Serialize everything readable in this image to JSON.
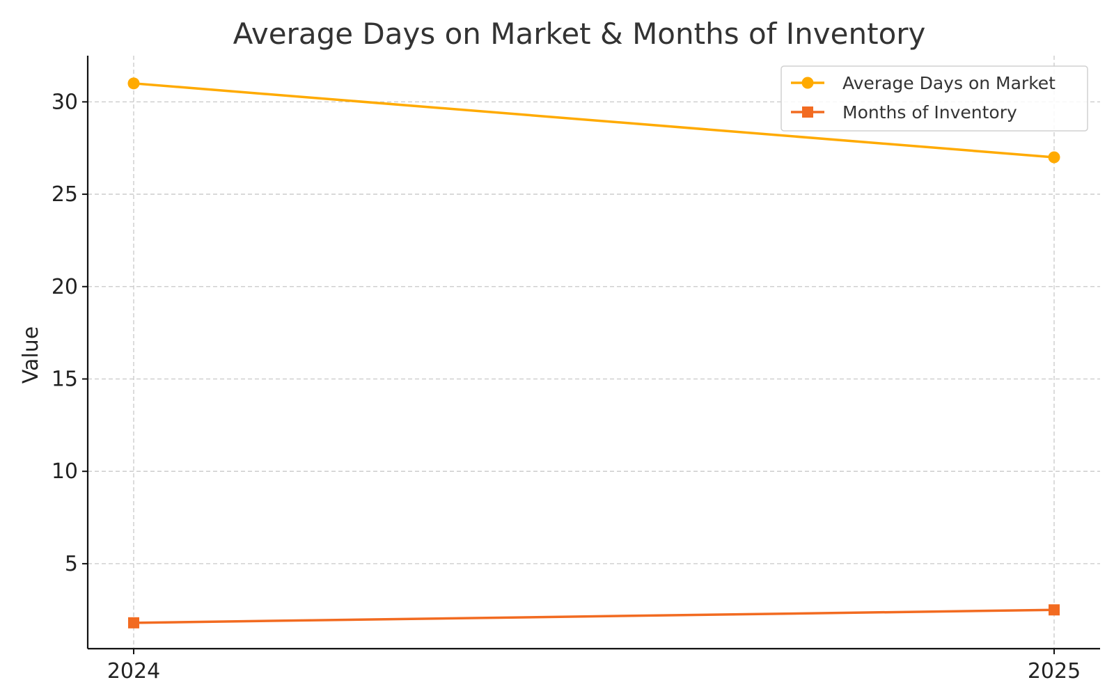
{
  "chart_data": {
    "type": "line",
    "title": "Average Days on Market & Months of Inventory",
    "xlabel": "",
    "ylabel": "Value",
    "categories": [
      "2024",
      "2025"
    ],
    "yticks": [
      5,
      10,
      15,
      20,
      25,
      30
    ],
    "ylim": [
      0.4,
      32.5
    ],
    "grid": true,
    "legend_position": "top-right",
    "series": [
      {
        "name": "Average Days on Market",
        "values": [
          31,
          27
        ],
        "color": "#FFAA00",
        "marker": "circle"
      },
      {
        "name": "Months of Inventory",
        "values": [
          1.8,
          2.5
        ],
        "color": "#F26B21",
        "marker": "square"
      }
    ]
  }
}
